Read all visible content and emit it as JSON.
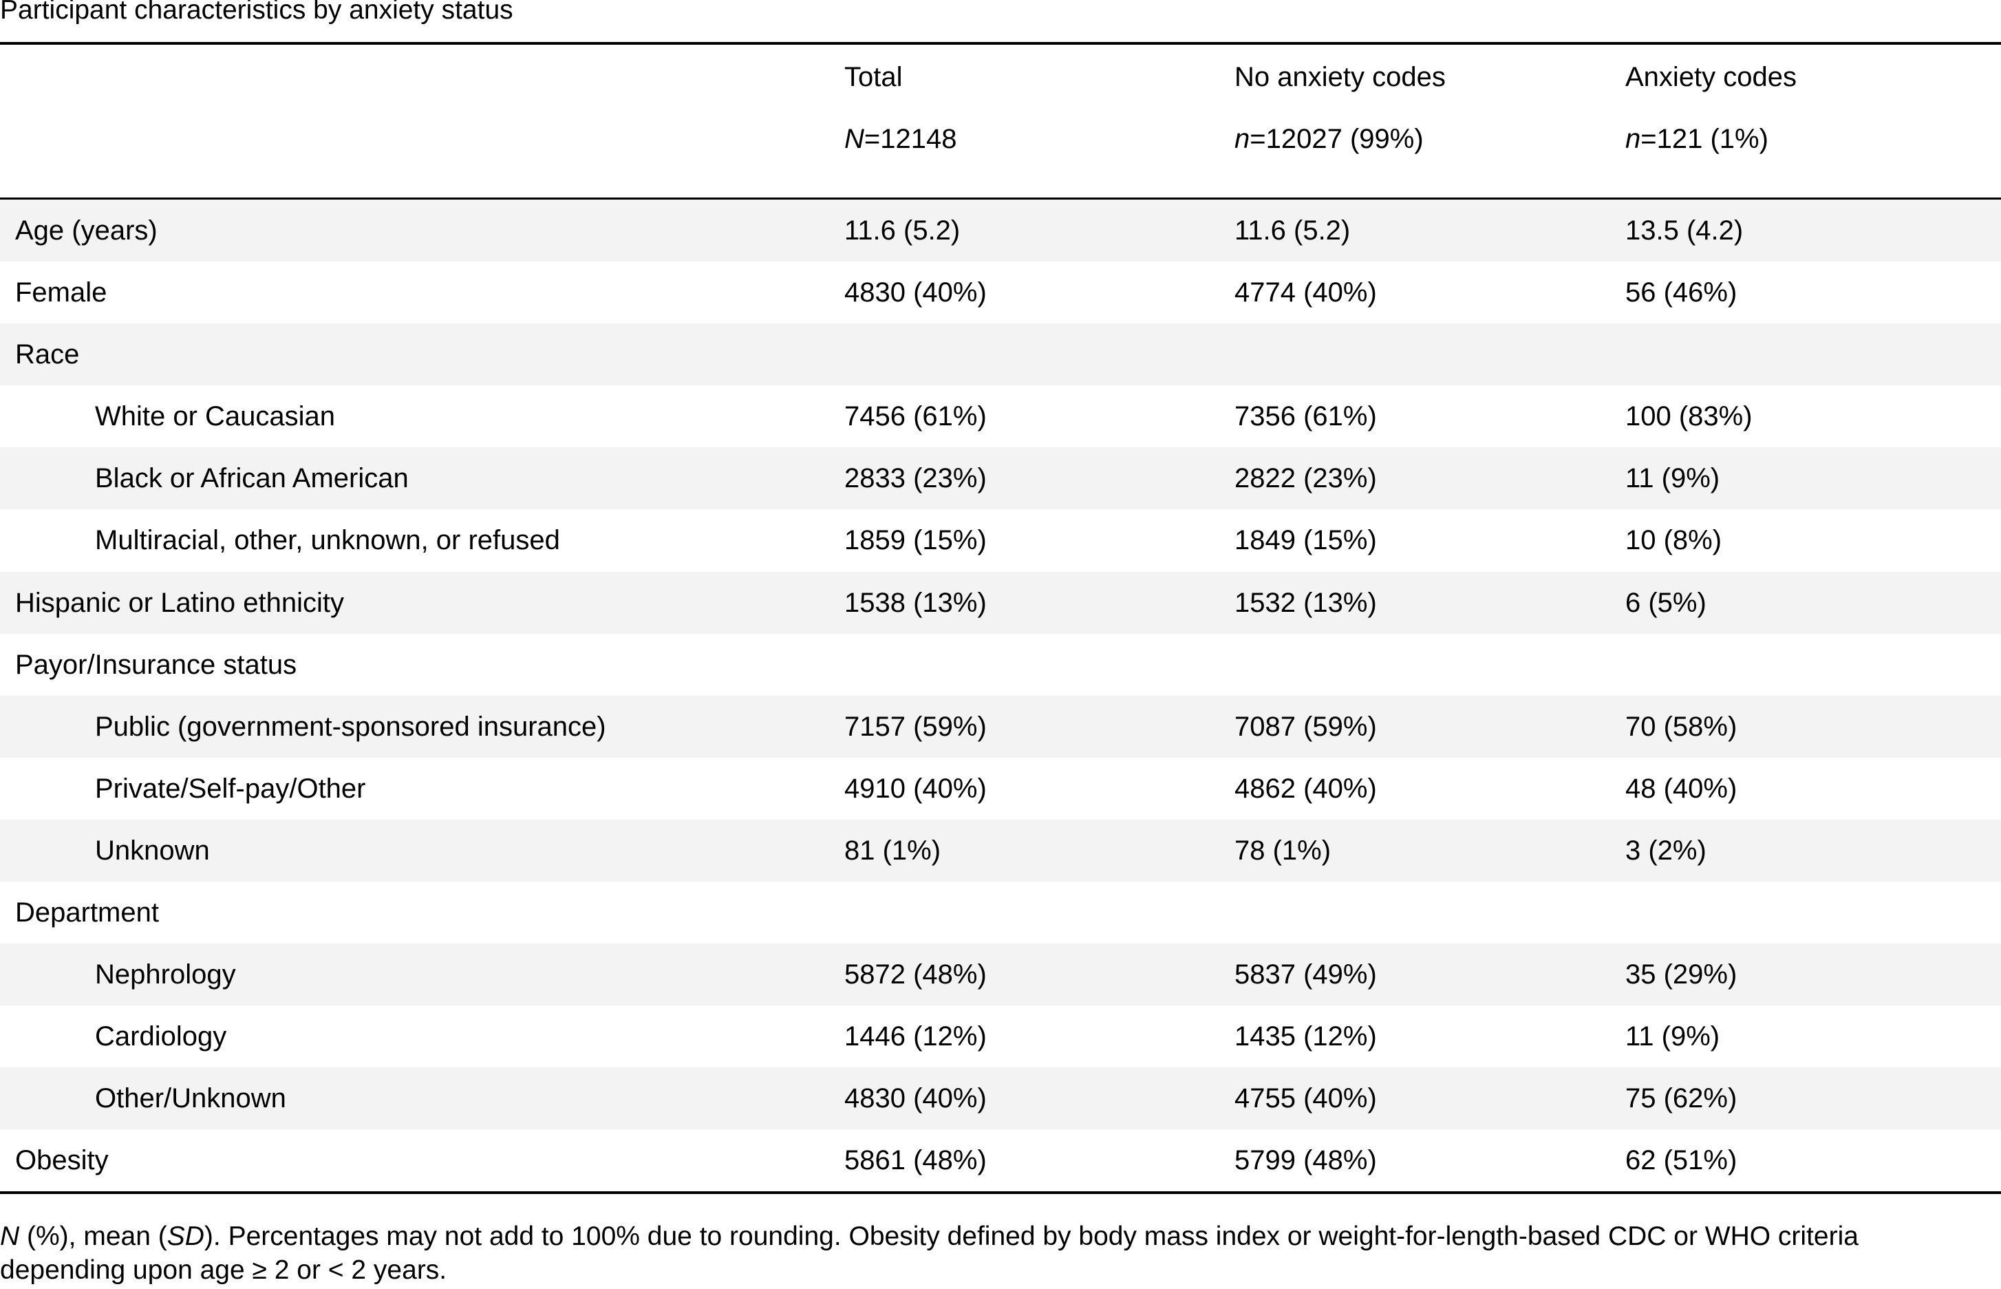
{
  "caption": "Participant characteristics by anxiety status",
  "header": {
    "columns": [
      {
        "title": "Total",
        "n_symbol": "N",
        "n_value": "=12148"
      },
      {
        "title": "No anxiety codes",
        "n_symbol": "n",
        "n_value": "=12027 (99%)"
      },
      {
        "title": "Anxiety codes",
        "n_symbol": "n",
        "n_value": "=121 (1%)"
      }
    ]
  },
  "rows": [
    {
      "label": "Age (years)",
      "total": "11.6 (5.2)",
      "no_anxiety": "11.6 (5.2)",
      "anxiety": "13.5 (4.2)"
    },
    {
      "label": "Female",
      "total": "4830 (40%)",
      "no_anxiety": "4774 (40%)",
      "anxiety": "56 (46%)"
    },
    {
      "label": "Race",
      "total": "",
      "no_anxiety": "",
      "anxiety": ""
    },
    {
      "label": "White or Caucasian",
      "total": "7456 (61%)",
      "no_anxiety": "7356 (61%)",
      "anxiety": "100 (83%)"
    },
    {
      "label": "Black or African American",
      "total": "2833 (23%)",
      "no_anxiety": "2822 (23%)",
      "anxiety": "11 (9%)"
    },
    {
      "label": "Multiracial, other, unknown, or refused",
      "total": "1859 (15%)",
      "no_anxiety": "1849 (15%)",
      "anxiety": "10 (8%)"
    },
    {
      "label": "Hispanic or Latino ethnicity",
      "total": "1538 (13%)",
      "no_anxiety": "1532 (13%)",
      "anxiety": "6 (5%)"
    },
    {
      "label": "Payor/Insurance status",
      "total": "",
      "no_anxiety": "",
      "anxiety": ""
    },
    {
      "label": "Public (government-sponsored insurance)",
      "total": "7157 (59%)",
      "no_anxiety": "7087 (59%)",
      "anxiety": "70 (58%)"
    },
    {
      "label": "Private/Self-pay/Other",
      "total": "4910 (40%)",
      "no_anxiety": "4862 (40%)",
      "anxiety": "48 (40%)"
    },
    {
      "label": "Unknown",
      "total": "81 (1%)",
      "no_anxiety": "78 (1%)",
      "anxiety": "3 (2%)"
    },
    {
      "label": "Department",
      "total": "",
      "no_anxiety": "",
      "anxiety": ""
    },
    {
      "label": "Nephrology",
      "total": "5872 (48%)",
      "no_anxiety": "5837 (49%)",
      "anxiety": "35 (29%)"
    },
    {
      "label": "Cardiology",
      "total": "1446 (12%)",
      "no_anxiety": "1435 (12%)",
      "anxiety": "11 (9%)"
    },
    {
      "label": "Other/Unknown",
      "total": "4830 (40%)",
      "no_anxiety": "4755 (40%)",
      "anxiety": "75 (62%)"
    },
    {
      "label": "Obesity",
      "total": "5861 (48%)",
      "no_anxiety": "5799 (48%)",
      "anxiety": "62 (51%)"
    }
  ],
  "footnote": {
    "n_symbol": "N",
    "part1": " (%), mean (",
    "sd_symbol": "SD",
    "part2": "). Percentages may not add to 100% due to rounding. Obesity defined by body mass index or weight-for-length-based CDC or WHO criteria depending upon age ≥ 2 or < 2 years."
  }
}
